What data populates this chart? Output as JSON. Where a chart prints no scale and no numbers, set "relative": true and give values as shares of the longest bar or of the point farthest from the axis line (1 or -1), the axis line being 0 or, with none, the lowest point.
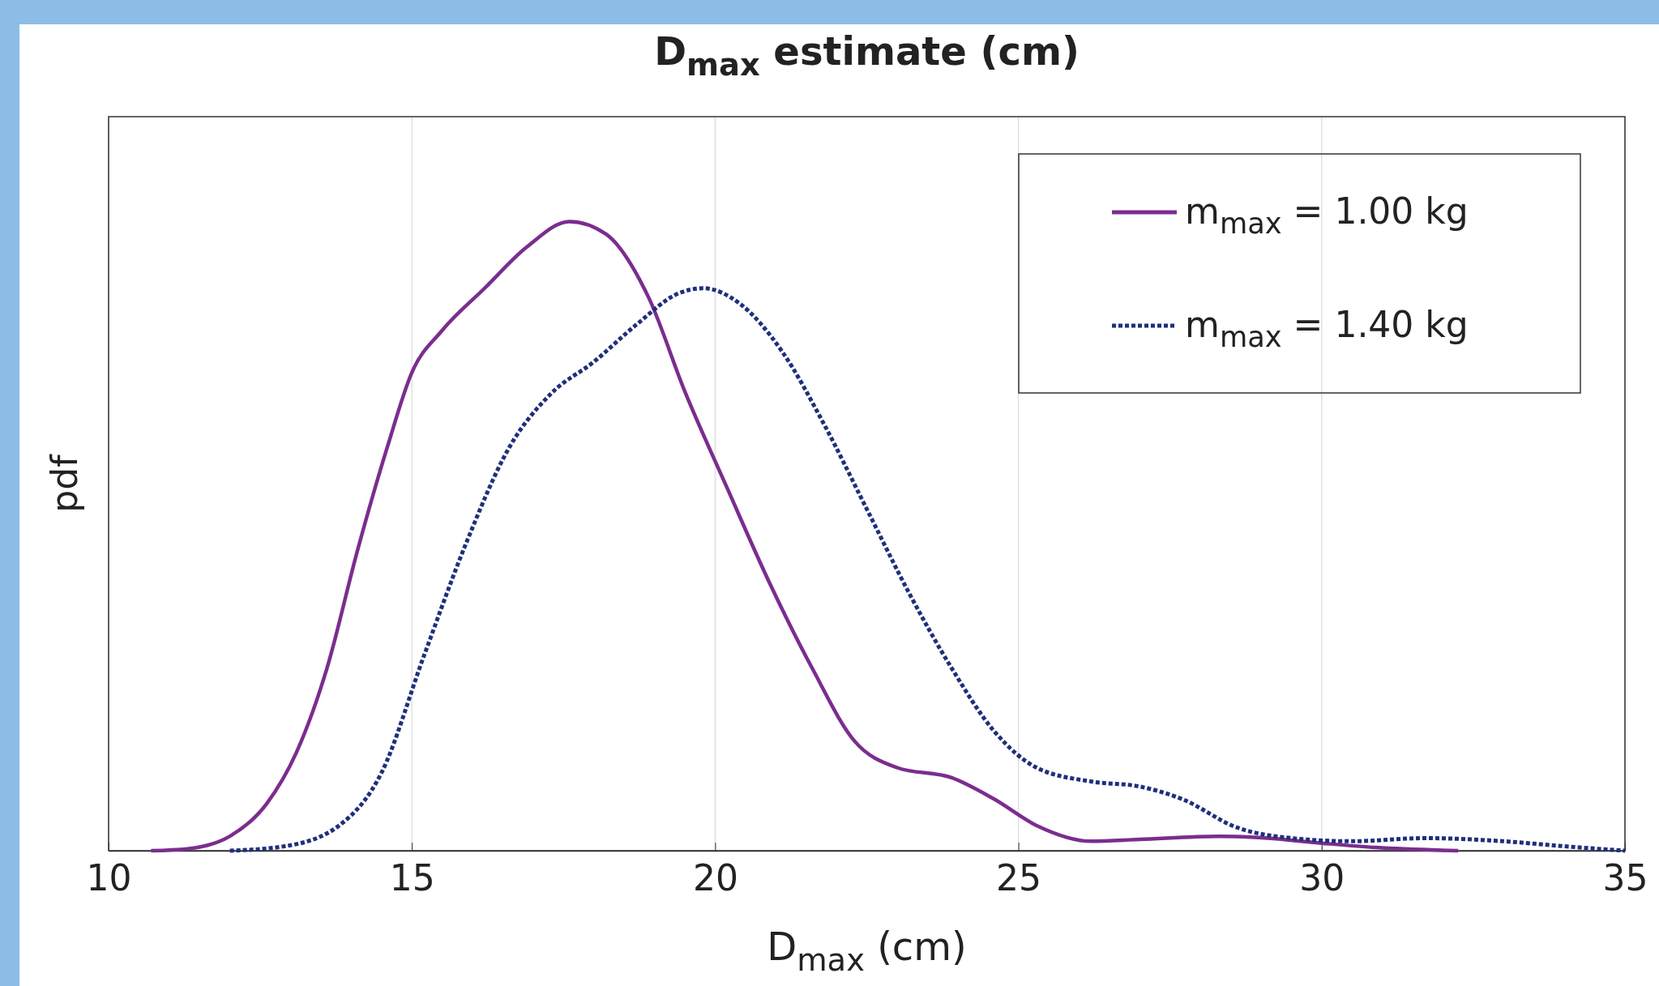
{
  "chart_data": {
    "type": "line",
    "title": "D$_{max}$ estimate (cm)",
    "xlabel": "D$_{max}$ (cm)",
    "ylabel": "pdf",
    "relative": true,
    "xlim": [
      10,
      35
    ],
    "xticks": [
      10,
      15,
      20,
      25,
      30,
      35
    ],
    "grid": "x",
    "legend": "top right",
    "series": [
      {
        "name": "m$_{max}$ = 1.00 kg",
        "color": "#7b2d8e",
        "line_style": "solid",
        "x": [
          10.7,
          11.3,
          12.0,
          12.6,
          13.1,
          13.6,
          14.1,
          14.6,
          15.0,
          15.5,
          16.2,
          16.9,
          17.6,
          18.2,
          18.9,
          19.5,
          20.2,
          20.9,
          21.6,
          22.3,
          23.0,
          23.9,
          24.6,
          25.3,
          26.2,
          27.0,
          28.3,
          29.1,
          30.0,
          30.9,
          32.25
        ],
        "values": [
          0,
          0.003,
          0.023,
          0.074,
          0.157,
          0.29,
          0.476,
          0.643,
          0.76,
          0.827,
          0.894,
          0.96,
          1.0,
          0.98,
          0.88,
          0.73,
          0.576,
          0.425,
          0.29,
          0.174,
          0.132,
          0.116,
          0.082,
          0.04,
          0.015,
          0.018,
          0.023,
          0.02,
          0.012,
          0.005,
          0
        ]
      },
      {
        "name": "m$_{max}$ = 1.40 kg",
        "color": "#1f2f7a",
        "line_style": "dotted",
        "x": [
          12.0,
          12.9,
          13.8,
          14.5,
          15.2,
          15.9,
          16.6,
          17.3,
          18.0,
          18.7,
          19.4,
          19.8,
          20.4,
          21.1,
          21.8,
          22.5,
          23.2,
          23.9,
          24.6,
          25.3,
          26.2,
          27.0,
          27.7,
          28.6,
          29.5,
          30.5,
          31.7,
          33.0,
          34.0,
          35.0
        ],
        "values": [
          0,
          0.007,
          0.04,
          0.124,
          0.31,
          0.49,
          0.64,
          0.727,
          0.777,
          0.836,
          0.886,
          0.894,
          0.87,
          0.794,
          0.677,
          0.543,
          0.409,
          0.29,
          0.19,
          0.132,
          0.11,
          0.102,
          0.082,
          0.037,
          0.02,
          0.015,
          0.02,
          0.015,
          0.007,
          0
        ]
      }
    ]
  }
}
